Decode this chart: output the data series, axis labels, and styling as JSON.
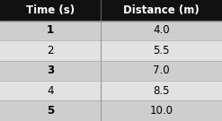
{
  "headers": [
    "Time (s)",
    "Distance (m)"
  ],
  "rows": [
    [
      "1",
      "4.0"
    ],
    [
      "2",
      "5.5"
    ],
    [
      "3",
      "7.0"
    ],
    [
      "4",
      "8.5"
    ],
    [
      "5",
      "10.0"
    ]
  ],
  "header_bg": "#111111",
  "header_text_color": "#ffffff",
  "row_bg_odd": "#cecece",
  "row_bg_even": "#e2e2e2",
  "row_text_color": "#000000",
  "divider_color": "#777777",
  "header_fontsize": 8.5,
  "row_fontsize": 8.5,
  "figsize": [
    2.47,
    1.35
  ],
  "dpi": 100
}
